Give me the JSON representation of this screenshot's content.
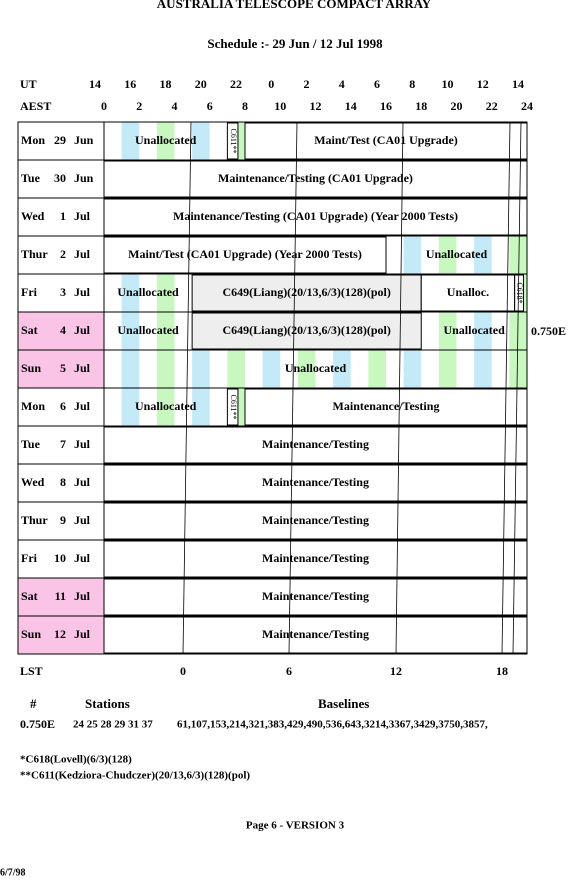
{
  "header": {
    "title": "AUSTRALIA TELESCOPE COMPACT ARRAY",
    "subtitle": "Schedule :- 29 Jun / 12 Jul 1998"
  },
  "axes": {
    "ut_label": "UT",
    "ut": [
      "14",
      "16",
      "18",
      "20",
      "22",
      "0",
      "2",
      "4",
      "6",
      "8",
      "10",
      "12",
      "14"
    ],
    "aest_label": "AEST",
    "aest": [
      "0",
      "2",
      "4",
      "6",
      "8",
      "10",
      "12",
      "14",
      "16",
      "18",
      "20",
      "22",
      "24"
    ],
    "lst_label": "LST",
    "lst": [
      "0",
      "6",
      "12",
      "18"
    ]
  },
  "days": [
    {
      "name": "Mon",
      "num": "29",
      "month": "Jun",
      "blocks": [
        "Unallocated",
        "C611**",
        "Maint/Test (CA01 Upgrade)"
      ]
    },
    {
      "name": "Tue",
      "num": "30",
      "month": "Jun",
      "blocks": [
        "Maintenance/Testing (CA01 Upgrade)"
      ]
    },
    {
      "name": "Wed",
      "num": "1",
      "month": "Jul",
      "blocks": [
        "Maintenance/Testing (CA01 Upgrade) (Year 2000 Tests)"
      ]
    },
    {
      "name": "Thur",
      "num": "2",
      "month": "Jul",
      "blocks": [
        "Maint/Test (CA01 Upgrade) (Year 2000 Tests)",
        "Unallocated"
      ]
    },
    {
      "name": "Fri",
      "num": "3",
      "month": "Jul",
      "blocks": [
        "Unallocated",
        "C649(Liang)(20/13,6/3)(128)(pol)",
        "Unalloc.",
        "C618*"
      ]
    },
    {
      "name": "Sat",
      "num": "4",
      "month": "Jul",
      "blocks": [
        "Unallocated",
        "C649(Liang)(20/13,6/3)(128)(pol)",
        "Unallocated"
      ]
    },
    {
      "name": "Sun",
      "num": "5",
      "month": "Jul",
      "blocks": [
        "Unallocated"
      ]
    },
    {
      "name": "Mon",
      "num": "6",
      "month": "Jul",
      "blocks": [
        "Unallocated",
        "C611**",
        "Maintenance/Testing"
      ]
    },
    {
      "name": "Tue",
      "num": "7",
      "month": "Jul",
      "blocks": [
        "Maintenance/Testing"
      ]
    },
    {
      "name": "Wed",
      "num": "8",
      "month": "Jul",
      "blocks": [
        "Maintenance/Testing"
      ]
    },
    {
      "name": "Thur",
      "num": "9",
      "month": "Jul",
      "blocks": [
        "Maintenance/Testing"
      ]
    },
    {
      "name": "Fri",
      "num": "10",
      "month": "Jul",
      "blocks": [
        "Maintenance/Testing"
      ]
    },
    {
      "name": "Sat",
      "num": "11",
      "month": "Jul",
      "blocks": [
        "Maintenance/Testing"
      ]
    },
    {
      "name": "Sun",
      "num": "12",
      "month": "Jul",
      "blocks": [
        "Maintenance/Testing"
      ]
    }
  ],
  "config_note": "0.750E",
  "footer": {
    "headers": [
      "#",
      "Stations",
      "Baselines"
    ],
    "row": [
      "0.750E",
      "24 25 28 29 31 37",
      "61,107,153,214,321,383,429,490,536,643,3214,3367,3429,3750,3857,"
    ],
    "notes": [
      "*C618(Lovell)(6/3)(128)",
      "**C611(Kedziora-Chudczer)(20/13,6/3)(128)(pol)"
    ],
    "page": "Page 6 - VERSION 3",
    "date": "6/7/98"
  }
}
